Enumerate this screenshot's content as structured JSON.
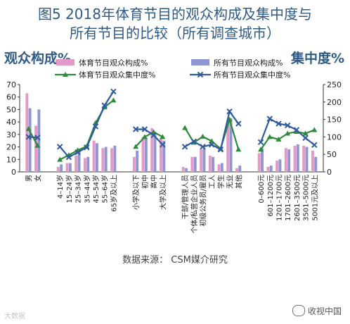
{
  "title_line1": "图5  2018年体育节目的观众构成及集中度与",
  "title_line2": "所有节目的比较（所有调查城市）",
  "left_axis_title": "观众构成%",
  "right_axis_title": "集中度%",
  "source": "数据来源：  CSM媒介研究",
  "watermark_left": "大数据",
  "watermark_right": "收视中国",
  "colors": {
    "sport_share": "#e39ac6",
    "all_share": "#8f96d3",
    "sport_conc": "#2e8b3a",
    "all_conc": "#2f5b9e",
    "title": "#2f5b86"
  },
  "chart_data": {
    "type": "bar",
    "ylim_left": [
      0,
      70
    ],
    "ylim_right": [
      0,
      250
    ],
    "left_ticks": [
      0,
      10,
      20,
      30,
      40,
      50,
      60,
      70
    ],
    "right_ticks": [
      0,
      50,
      100,
      150,
      200,
      250
    ],
    "groups": [
      [
        "男",
        "女"
      ],
      [
        "4–14岁",
        "15–24岁",
        "25–34岁",
        "35–44岁",
        "45–54岁",
        "55–64岁",
        "65岁及以上"
      ],
      [
        "小学及以下",
        "初中",
        "高中",
        "大学及以上"
      ],
      [
        "干部/管理人员",
        "个体/私营企业人员",
        "初级公务员/雇员",
        "工人",
        "学生",
        "无业",
        "其他"
      ],
      [
        "0–600元",
        "601–1200元",
        "1201–1700元",
        "1701–2600元",
        "2601–3500元",
        "3501–5000元",
        "5001元及以上"
      ]
    ],
    "series": [
      {
        "name": "体育节目观众构成%",
        "axis": "left",
        "kind": "bar",
        "values": [
          [
            63,
            37
          ],
          [
            4,
            7,
            13,
            11,
            25,
            19,
            19
          ],
          [
            12,
            28,
            35,
            27
          ],
          [
            4,
            12,
            18,
            13,
            6,
            40,
            3
          ],
          [
            15,
            4,
            9,
            19,
            21,
            21,
            17
          ]
        ]
      },
      {
        "name": "所有节目观众构成%",
        "axis": "left",
        "kind": "bar",
        "values": [
          [
            51,
            50
          ],
          [
            6,
            7,
            16,
            12,
            23,
            20,
            21
          ],
          [
            17,
            27,
            32,
            25
          ],
          [
            3,
            12,
            19,
            12,
            7,
            43,
            5
          ],
          [
            19,
            5,
            10,
            18,
            22,
            20,
            12
          ]
        ]
      },
      {
        "name": "体育节目观众集中度%",
        "axis": "right",
        "kind": "line",
        "values": [
          [
            123,
            75
          ],
          [
            35,
            48,
            62,
            73,
            140,
            185,
            205
          ],
          [
            72,
            100,
            114,
            100
          ],
          [
            126,
            84,
            101,
            88,
            66,
            150,
            64
          ],
          [
            64,
            100,
            93,
            110,
            115,
            110,
            120
          ]
        ]
      },
      {
        "name": "所有节目观众集中度%",
        "axis": "right",
        "kind": "line",
        "values": [
          [
            100,
            98
          ],
          [
            72,
            42,
            56,
            70,
            130,
            190,
            230
          ],
          [
            122,
            122,
            105,
            78
          ],
          [
            72,
            87,
            72,
            78,
            64,
            173,
            138
          ],
          [
            85,
            152,
            138,
            133,
            120,
            97,
            77
          ]
        ]
      }
    ]
  }
}
